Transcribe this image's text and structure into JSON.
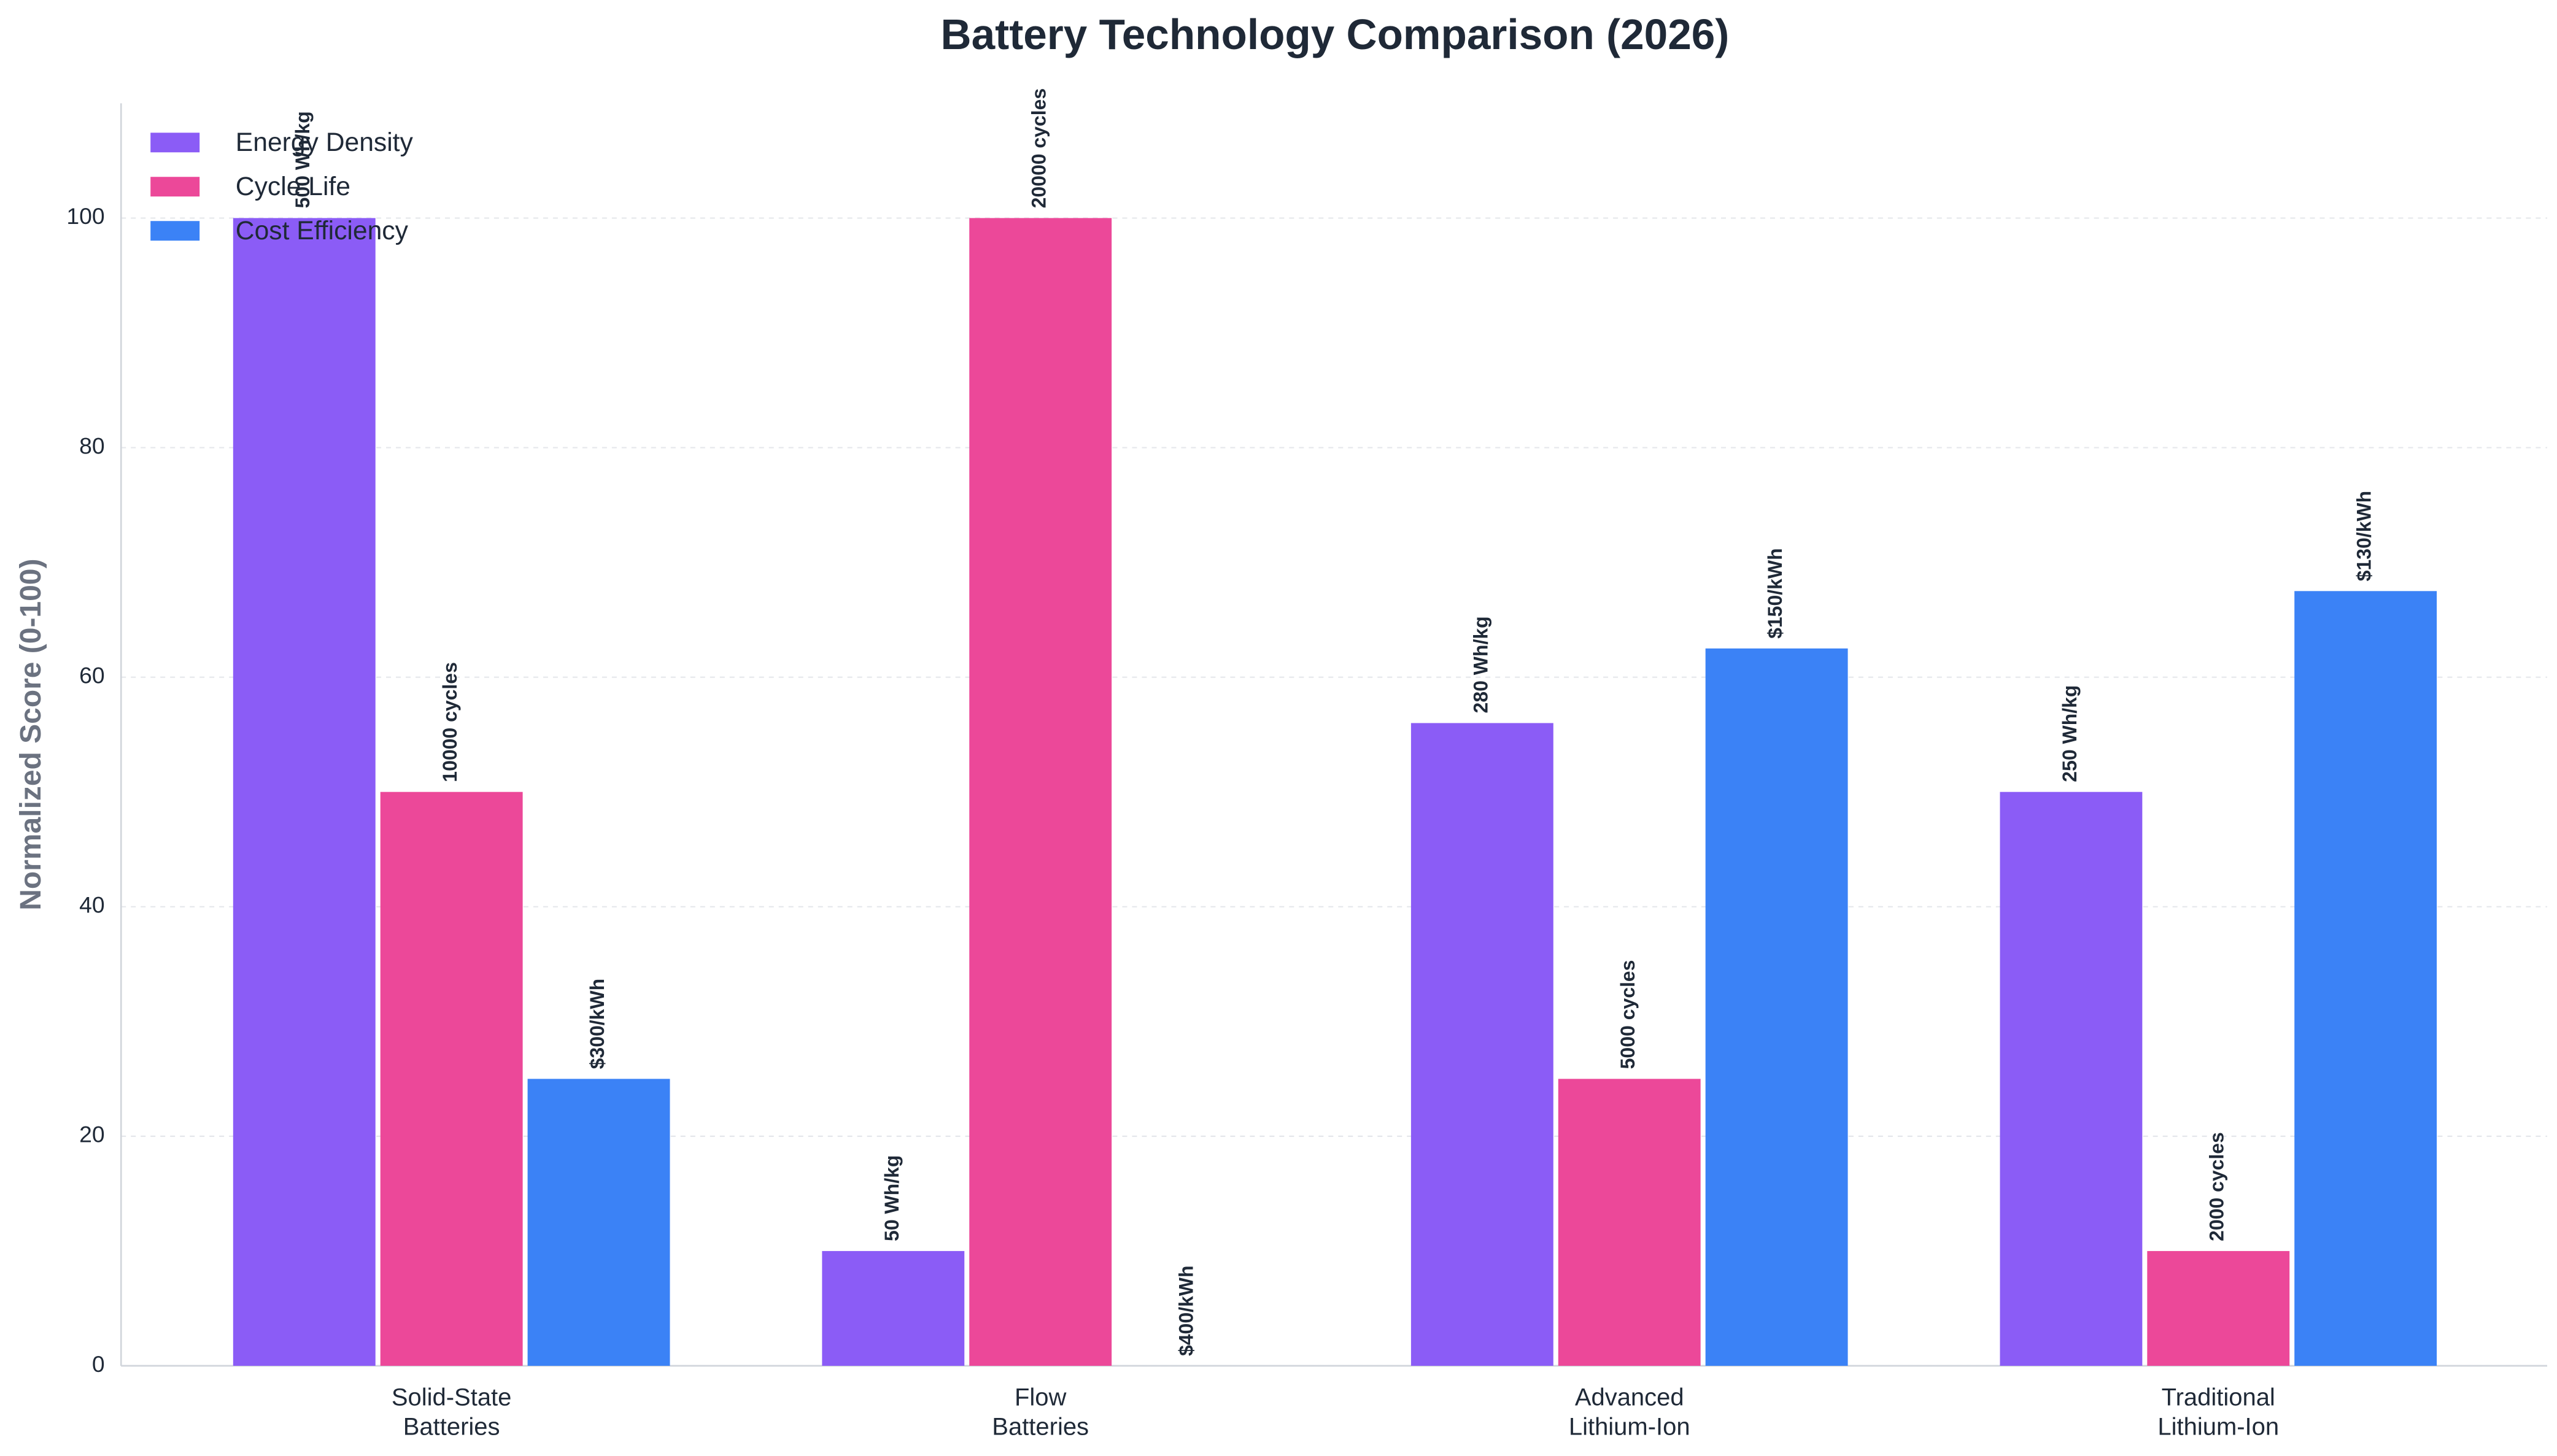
{
  "chart_data": {
    "type": "bar",
    "title": "Battery Technology Comparison (2026)",
    "y_label": "Normalized Score (0-100)",
    "categories": [
      [
        "Solid-State",
        "Batteries"
      ],
      [
        "Flow",
        "Batteries"
      ],
      [
        "Advanced",
        "Lithium-Ion"
      ],
      [
        "Traditional",
        "Lithium-Ion"
      ]
    ],
    "series": [
      {
        "name": "Energy Density",
        "color": "#8b5cf6",
        "values": [
          100,
          10,
          56,
          50
        ],
        "value_labels": [
          "500 Wh/kg",
          "50 Wh/kg",
          "280 Wh/kg",
          "250 Wh/kg"
        ]
      },
      {
        "name": "Cycle Life",
        "color": "#ec4899",
        "values": [
          50,
          100,
          25,
          10
        ],
        "value_labels": [
          "10000 cycles",
          "20000 cycles",
          "5000 cycles",
          "2000 cycles"
        ]
      },
      {
        "name": "Cost Efficiency",
        "color": "#3b82f6",
        "values": [
          25,
          0,
          62.5,
          67.5
        ],
        "value_labels": [
          "$300/kWh",
          "$400/kWh",
          "$150/kWh",
          "$130/kWh"
        ]
      }
    ],
    "ylim": [
      0,
      110
    ],
    "yticks": [
      0,
      20,
      40,
      60,
      80,
      100
    ],
    "grid": true,
    "legend": "upper left"
  }
}
